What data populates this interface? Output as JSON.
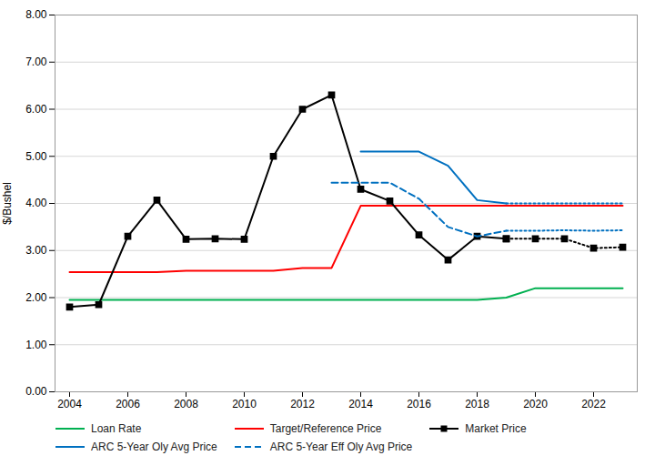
{
  "chart_data": {
    "type": "line",
    "ylabel": "$/Bushel",
    "x": [
      2004,
      2005,
      2006,
      2007,
      2008,
      2009,
      2010,
      2011,
      2012,
      2013,
      2014,
      2015,
      2016,
      2017,
      2018,
      2019,
      2020,
      2021,
      2022,
      2023
    ],
    "series": [
      {
        "name": "Loan Rate",
        "color": "#00b050",
        "line_style": "solid",
        "values": [
          1.95,
          1.95,
          1.95,
          1.95,
          1.95,
          1.95,
          1.95,
          1.95,
          1.95,
          1.95,
          1.95,
          1.95,
          1.95,
          1.95,
          1.95,
          2.0,
          2.2,
          2.2,
          2.2,
          2.2
        ]
      },
      {
        "name": "Target/Reference Price",
        "color": "#ff0000",
        "line_style": "solid",
        "values": [
          2.54,
          2.54,
          2.54,
          2.54,
          2.57,
          2.57,
          2.57,
          2.57,
          2.63,
          2.63,
          3.95,
          3.95,
          3.95,
          3.95,
          3.95,
          3.95,
          3.95,
          3.95,
          3.95,
          3.95
        ]
      },
      {
        "name": "Market Price",
        "color": "#000000",
        "line_style": "solid",
        "marker": "square",
        "values": [
          1.8,
          1.85,
          3.3,
          4.07,
          3.24,
          3.25,
          3.24,
          5.0,
          6.0,
          6.3,
          4.3,
          4.05,
          3.33,
          2.8,
          3.3,
          3.25,
          null,
          null,
          null,
          null
        ]
      },
      {
        "color": "#000000",
        "line_style": "dotted",
        "marker": "square",
        "values": [
          null,
          null,
          null,
          null,
          null,
          null,
          null,
          null,
          null,
          null,
          null,
          null,
          null,
          null,
          null,
          3.25,
          3.25,
          3.25,
          3.05,
          3.07
        ]
      },
      {
        "name": "ARC 5-Year Oly Avg Price",
        "color": "#0070c0",
        "line_style": "solid",
        "values": [
          null,
          null,
          null,
          null,
          null,
          null,
          null,
          null,
          null,
          null,
          5.1,
          5.1,
          5.1,
          4.8,
          4.07,
          4.0,
          null,
          null,
          null,
          null
        ]
      },
      {
        "color": "#0070c0",
        "line_style": "dotted",
        "values": [
          null,
          null,
          null,
          null,
          null,
          null,
          null,
          null,
          null,
          null,
          null,
          null,
          null,
          null,
          null,
          4.0,
          4.0,
          4.0,
          4.0,
          4.0
        ]
      },
      {
        "name": "ARC 5-Year Eff Oly Avg Price",
        "color": "#0070c0",
        "line_style": "dashed",
        "values": [
          null,
          null,
          null,
          null,
          null,
          null,
          null,
          null,
          null,
          4.44,
          4.44,
          4.44,
          4.1,
          3.5,
          3.3,
          3.42,
          null,
          null,
          null,
          null
        ]
      },
      {
        "color": "#0070c0",
        "line_style": "dotted",
        "values": [
          null,
          null,
          null,
          null,
          null,
          null,
          null,
          null,
          null,
          null,
          null,
          null,
          null,
          null,
          null,
          3.42,
          3.42,
          3.43,
          3.42,
          3.43
        ]
      }
    ],
    "xlim": [
      2003.5,
      2023.5
    ],
    "xticks": [
      2004,
      2006,
      2008,
      2010,
      2012,
      2014,
      2016,
      2018,
      2020,
      2022
    ],
    "ylim": [
      0.0,
      8.0
    ],
    "yticks": [
      {
        "value": 0.0,
        "label": "0.00"
      },
      {
        "value": 1.0,
        "label": "1.00"
      },
      {
        "value": 2.0,
        "label": "2.00"
      },
      {
        "value": 3.0,
        "label": "3.00"
      },
      {
        "value": 4.0,
        "label": "4.00"
      },
      {
        "value": 5.0,
        "label": "5.00"
      },
      {
        "value": 6.0,
        "label": "6.00"
      },
      {
        "value": 7.0,
        "label": "7.00"
      },
      {
        "value": 8.0,
        "label": "8.00"
      }
    ],
    "grid": "y",
    "legend": "bottom"
  }
}
